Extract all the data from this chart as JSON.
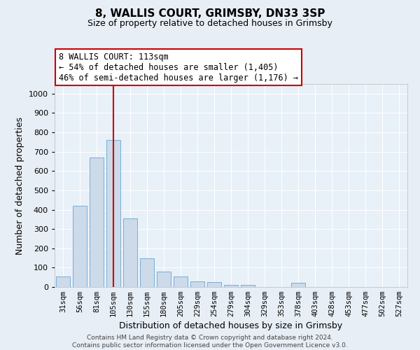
{
  "title1": "8, WALLIS COURT, GRIMSBY, DN33 3SP",
  "title2": "Size of property relative to detached houses in Grimsby",
  "xlabel": "Distribution of detached houses by size in Grimsby",
  "ylabel": "Number of detached properties",
  "categories": [
    "31sqm",
    "56sqm",
    "81sqm",
    "105sqm",
    "130sqm",
    "155sqm",
    "180sqm",
    "205sqm",
    "229sqm",
    "254sqm",
    "279sqm",
    "304sqm",
    "329sqm",
    "353sqm",
    "378sqm",
    "403sqm",
    "428sqm",
    "453sqm",
    "477sqm",
    "502sqm",
    "527sqm"
  ],
  "values": [
    55,
    420,
    670,
    760,
    355,
    150,
    80,
    55,
    30,
    25,
    10,
    10,
    0,
    0,
    20,
    0,
    0,
    0,
    0,
    0,
    0
  ],
  "bar_color": "#ccdaea",
  "bar_edge_color": "#7aaed4",
  "vline_color": "#cc0000",
  "vline_x_index": 3,
  "annotation_line1": "8 WALLIS COURT: 113sqm",
  "annotation_line2": "← 54% of detached houses are smaller (1,405)",
  "annotation_line3": "46% of semi-detached houses are larger (1,176) →",
  "annotation_box_facecolor": "#ffffff",
  "annotation_box_edgecolor": "#cc0000",
  "ylim_max": 1050,
  "yticks": [
    0,
    100,
    200,
    300,
    400,
    500,
    600,
    700,
    800,
    900,
    1000
  ],
  "fig_bg_color": "#e8eef5",
  "ax_bg_color": "#e8f0f8",
  "grid_color": "#ffffff",
  "title1_fontsize": 11,
  "title2_fontsize": 9,
  "xlabel_fontsize": 9,
  "ylabel_fontsize": 9,
  "tick_fontsize": 8,
  "xtick_fontsize": 7.5,
  "annotation_fontsize": 8.5,
  "footer_fontsize": 6.5,
  "footer_line1": "Contains HM Land Registry data © Crown copyright and database right 2024.",
  "footer_line2": "Contains public sector information licensed under the Open Government Licence v3.0."
}
